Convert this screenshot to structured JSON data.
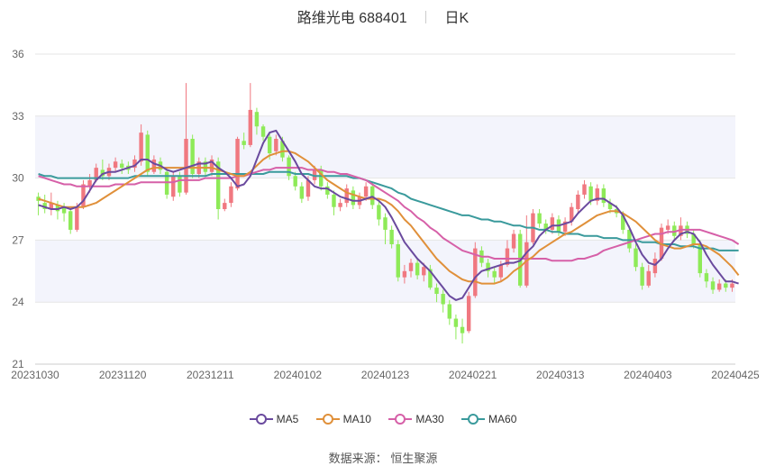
{
  "header": {
    "title": "路维光电 688401",
    "period": "日K"
  },
  "source": {
    "label": "数据来源：",
    "value": "恒生聚源"
  },
  "colors": {
    "up": "#f07880",
    "down": "#8eea58",
    "MA5": "#6a4a9e",
    "MA10": "#e0903a",
    "MA30": "#d660a8",
    "MA60": "#3a9a9c",
    "band": "#f3f4fc",
    "grid": "#e6e6e6"
  },
  "chart_data": {
    "type": "candlestick",
    "title": "路维光电 688401",
    "ylim": [
      21,
      36
    ],
    "yticks": [
      21,
      24,
      27,
      30,
      33,
      36
    ],
    "xticks": [
      "20231030",
      "20231120",
      "20231211",
      "20240102",
      "20240123",
      "20240221",
      "20240313",
      "20240403",
      "20240425"
    ],
    "legend": [
      "MA5",
      "MA10",
      "MA30",
      "MA60"
    ],
    "legend_position": "bottom",
    "candles": [
      [
        29.1,
        28.9,
        29.3,
        28.2
      ],
      [
        28.8,
        28.5,
        29.2,
        28.3
      ],
      [
        28.5,
        28.8,
        29.3,
        28.2
      ],
      [
        28.7,
        28.4,
        28.9,
        28.0
      ],
      [
        28.6,
        28.3,
        28.8,
        27.9
      ],
      [
        28.4,
        27.5,
        28.5,
        27.3
      ],
      [
        27.5,
        28.6,
        28.8,
        27.4
      ],
      [
        28.6,
        29.7,
        29.9,
        28.5
      ],
      [
        29.6,
        29.9,
        30.2,
        29.3
      ],
      [
        29.9,
        30.5,
        30.7,
        29.8
      ],
      [
        30.4,
        30.1,
        30.9,
        29.9
      ],
      [
        30.1,
        30.5,
        30.7,
        29.9
      ],
      [
        30.5,
        30.8,
        31.0,
        30.3
      ],
      [
        30.7,
        30.5,
        30.9,
        30.2
      ],
      [
        30.6,
        30.4,
        30.8,
        30.2
      ],
      [
        30.5,
        30.9,
        31.1,
        30.3
      ],
      [
        30.8,
        32.2,
        32.6,
        30.6
      ],
      [
        32.1,
        30.3,
        32.3,
        30.1
      ],
      [
        30.3,
        30.9,
        31.1,
        30.2
      ],
      [
        30.8,
        30.4,
        31.0,
        30.2
      ],
      [
        30.3,
        29.2,
        30.4,
        29.0
      ],
      [
        29.1,
        30.1,
        30.3,
        28.9
      ],
      [
        30.1,
        29.3,
        30.3,
        29.1
      ],
      [
        29.3,
        31.9,
        34.6,
        29.2
      ],
      [
        31.9,
        30.2,
        32.1,
        30.0
      ],
      [
        30.2,
        30.8,
        31.0,
        30.0
      ],
      [
        30.8,
        30.3,
        31.0,
        30.1
      ],
      [
        30.3,
        30.9,
        31.1,
        30.1
      ],
      [
        30.8,
        28.5,
        31.0,
        28.0
      ],
      [
        28.5,
        28.8,
        29.0,
        28.4
      ],
      [
        28.8,
        29.6,
        29.8,
        28.6
      ],
      [
        29.5,
        31.9,
        32.0,
        29.4
      ],
      [
        31.8,
        31.6,
        32.2,
        31.4
      ],
      [
        31.6,
        33.3,
        34.6,
        31.5
      ],
      [
        33.2,
        32.5,
        33.4,
        32.1
      ],
      [
        32.5,
        32.0,
        32.6,
        31.8
      ],
      [
        32.0,
        31.2,
        32.2,
        30.9
      ],
      [
        31.3,
        31.9,
        32.1,
        31.1
      ],
      [
        31.8,
        31.0,
        32.0,
        30.8
      ],
      [
        31.0,
        30.1,
        31.1,
        29.9
      ],
      [
        30.1,
        29.6,
        30.3,
        29.4
      ],
      [
        29.6,
        29.0,
        29.8,
        28.8
      ],
      [
        29.1,
        29.9,
        30.1,
        28.9
      ],
      [
        29.9,
        30.4,
        30.6,
        29.7
      ],
      [
        30.4,
        29.6,
        30.6,
        29.4
      ],
      [
        29.6,
        29.2,
        29.8,
        29.0
      ],
      [
        29.2,
        28.6,
        29.4,
        28.2
      ],
      [
        28.6,
        28.8,
        29.0,
        28.4
      ],
      [
        28.8,
        29.5,
        29.7,
        28.6
      ],
      [
        29.4,
        28.7,
        29.6,
        28.5
      ],
      [
        28.7,
        29.1,
        29.3,
        28.5
      ],
      [
        29.1,
        29.6,
        29.8,
        28.9
      ],
      [
        29.6,
        28.7,
        29.8,
        28.5
      ],
      [
        28.7,
        28.0,
        28.9,
        27.7
      ],
      [
        28.1,
        27.5,
        28.3,
        26.8
      ],
      [
        27.5,
        26.8,
        27.7,
        26.6
      ],
      [
        26.8,
        25.2,
        27.0,
        25.0
      ],
      [
        25.2,
        25.5,
        25.8,
        24.9
      ],
      [
        25.5,
        25.9,
        26.1,
        25.2
      ],
      [
        25.9,
        25.3,
        26.1,
        25.1
      ],
      [
        25.3,
        25.7,
        25.9,
        25.0
      ],
      [
        25.6,
        24.7,
        25.8,
        24.6
      ],
      [
        24.7,
        24.4,
        24.9,
        24.0
      ],
      [
        24.4,
        23.9,
        24.6,
        23.5
      ],
      [
        23.9,
        23.2,
        24.1,
        22.9
      ],
      [
        23.2,
        22.8,
        23.4,
        22.2
      ],
      [
        22.8,
        22.5,
        23.2,
        22.0
      ],
      [
        22.6,
        24.3,
        24.5,
        22.5
      ],
      [
        24.3,
        26.6,
        26.9,
        24.2
      ],
      [
        26.5,
        25.9,
        26.7,
        25.7
      ],
      [
        25.9,
        25.5,
        26.1,
        25.2
      ],
      [
        25.5,
        25.2,
        25.7,
        24.9
      ],
      [
        25.2,
        25.8,
        26.0,
        25.0
      ],
      [
        25.8,
        26.6,
        27.0,
        25.7
      ],
      [
        26.6,
        27.3,
        27.5,
        26.4
      ],
      [
        27.3,
        24.8,
        27.5,
        24.7
      ],
      [
        24.8,
        26.9,
        28.2,
        24.7
      ],
      [
        26.9,
        28.3,
        28.5,
        26.8
      ],
      [
        28.3,
        27.8,
        28.5,
        27.6
      ],
      [
        27.8,
        27.5,
        28.0,
        27.3
      ],
      [
        27.5,
        28.1,
        28.3,
        27.3
      ],
      [
        28.0,
        27.4,
        28.2,
        27.2
      ],
      [
        27.4,
        27.9,
        28.1,
        27.2
      ],
      [
        27.9,
        28.6,
        28.8,
        27.7
      ],
      [
        28.5,
        29.2,
        29.4,
        28.3
      ],
      [
        29.2,
        29.7,
        29.9,
        29.0
      ],
      [
        29.6,
        28.9,
        29.8,
        28.7
      ],
      [
        28.9,
        29.5,
        29.7,
        28.7
      ],
      [
        29.5,
        28.8,
        29.7,
        28.6
      ],
      [
        28.8,
        28.5,
        29.0,
        28.3
      ],
      [
        28.5,
        28.3,
        28.7,
        28.1
      ],
      [
        28.2,
        27.5,
        28.4,
        27.3
      ],
      [
        27.5,
        26.6,
        27.7,
        26.4
      ],
      [
        26.6,
        25.7,
        26.8,
        25.5
      ],
      [
        25.7,
        24.8,
        25.9,
        24.6
      ],
      [
        24.8,
        25.5,
        25.8,
        24.7
      ],
      [
        25.4,
        26.1,
        26.4,
        25.2
      ],
      [
        26.1,
        27.6,
        27.8,
        26.0
      ],
      [
        27.5,
        27.7,
        28.0,
        27.3
      ],
      [
        27.7,
        27.2,
        27.9,
        27.0
      ],
      [
        27.2,
        27.7,
        28.1,
        27.0
      ],
      [
        27.7,
        27.3,
        27.9,
        27.1
      ],
      [
        27.3,
        26.8,
        27.5,
        26.6
      ],
      [
        26.8,
        25.4,
        27.0,
        25.2
      ],
      [
        25.4,
        25.0,
        25.6,
        24.7
      ],
      [
        25.0,
        24.6,
        25.2,
        24.4
      ],
      [
        24.6,
        24.9,
        25.1,
        24.5
      ],
      [
        24.9,
        24.7,
        25.1,
        24.5
      ],
      [
        24.7,
        24.9,
        25.1,
        24.5
      ]
    ],
    "ma": {
      "MA5": [
        28.7,
        28.6,
        28.5,
        28.5,
        28.6,
        28.5,
        28.6,
        28.9,
        29.4,
        29.9,
        30.2,
        30.3,
        30.3,
        30.4,
        30.5,
        30.6,
        30.9,
        30.9,
        30.7,
        30.6,
        30.4,
        30.3,
        30.4,
        30.5,
        30.6,
        30.7,
        30.7,
        30.8,
        30.5,
        30.3,
        30.0,
        29.6,
        29.7,
        30.1,
        30.9,
        31.7,
        32.2,
        32.3,
        31.8,
        31.3,
        30.8,
        30.2,
        29.9,
        29.6,
        29.5,
        29.5,
        29.3,
        29.1,
        29.0,
        28.9,
        28.9,
        29.0,
        29.1,
        28.9,
        28.6,
        28.1,
        27.5,
        26.9,
        26.5,
        26.1,
        25.8,
        25.5,
        25.1,
        24.7,
        24.3,
        24.1,
        24.2,
        24.7,
        25.2,
        25.5,
        25.6,
        25.7,
        25.8,
        25.9,
        25.9,
        26.0,
        26.4,
        26.7,
        27.2,
        27.5,
        27.7,
        27.7,
        27.8,
        27.9,
        28.3,
        28.6,
        28.9,
        29.0,
        29.0,
        28.8,
        28.6,
        28.2,
        27.6,
        26.9,
        26.3,
        25.9,
        25.8,
        26.1,
        26.6,
        27.0,
        27.3,
        27.4,
        27.3,
        26.9,
        26.3,
        25.8,
        25.4,
        25.0,
        25.0,
        24.9
      ],
      "MA10": [
        29.0,
        28.9,
        28.8,
        28.7,
        28.6,
        28.6,
        28.6,
        28.6,
        28.7,
        28.8,
        29.0,
        29.2,
        29.4,
        29.6,
        29.8,
        30.0,
        30.2,
        30.4,
        30.5,
        30.5,
        30.5,
        30.5,
        30.5,
        30.5,
        30.5,
        30.5,
        30.5,
        30.5,
        30.4,
        30.3,
        30.2,
        30.1,
        30.1,
        30.3,
        30.6,
        30.9,
        31.1,
        31.2,
        31.3,
        31.3,
        31.2,
        31.0,
        30.8,
        30.5,
        30.2,
        29.9,
        29.7,
        29.5,
        29.3,
        29.2,
        29.1,
        29.0,
        29.0,
        29.0,
        28.9,
        28.7,
        28.4,
        28.0,
        27.7,
        27.3,
        26.9,
        26.5,
        26.1,
        25.8,
        25.5,
        25.3,
        25.1,
        25.0,
        25.0,
        24.9,
        24.9,
        24.9,
        25.0,
        25.2,
        25.5,
        25.7,
        26.0,
        26.2,
        26.5,
        26.7,
        26.9,
        27.1,
        27.3,
        27.4,
        27.6,
        27.8,
        28.0,
        28.2,
        28.3,
        28.4,
        28.4,
        28.3,
        28.1,
        27.9,
        27.6,
        27.3,
        27.0,
        26.8,
        26.7,
        26.6,
        26.6,
        26.7,
        26.8,
        26.8,
        26.7,
        26.5,
        26.3,
        26.0,
        25.7,
        25.3
      ],
      "MA30": [
        30.1,
        30.0,
        29.9,
        29.8,
        29.7,
        29.7,
        29.6,
        29.6,
        29.6,
        29.6,
        29.6,
        29.6,
        29.7,
        29.7,
        29.7,
        29.7,
        29.8,
        29.8,
        29.8,
        29.8,
        29.8,
        29.8,
        29.9,
        29.9,
        29.9,
        29.9,
        30.0,
        30.0,
        30.0,
        30.0,
        30.0,
        30.1,
        30.1,
        30.2,
        30.3,
        30.4,
        30.4,
        30.5,
        30.5,
        30.5,
        30.5,
        30.5,
        30.4,
        30.4,
        30.4,
        30.3,
        30.3,
        30.2,
        30.2,
        30.1,
        30.0,
        29.9,
        29.7,
        29.5,
        29.3,
        29.1,
        28.9,
        28.6,
        28.4,
        28.1,
        27.9,
        27.6,
        27.4,
        27.1,
        26.9,
        26.7,
        26.5,
        26.4,
        26.3,
        26.2,
        26.2,
        26.1,
        26.1,
        26.1,
        26.1,
        26.1,
        26.1,
        26.1,
        26.1,
        26.1,
        26.0,
        26.0,
        26.0,
        26.0,
        26.1,
        26.1,
        26.2,
        26.3,
        26.5,
        26.6,
        26.7,
        26.8,
        26.9,
        27.0,
        27.1,
        27.2,
        27.3,
        27.3,
        27.4,
        27.4,
        27.5,
        27.5,
        27.5,
        27.5,
        27.4,
        27.3,
        27.2,
        27.1,
        27.0,
        26.8
      ],
      "MA60": [
        30.2,
        30.1,
        30.1,
        30.0,
        30.0,
        30.0,
        30.0,
        30.0,
        30.0,
        30.0,
        30.0,
        30.0,
        30.0,
        30.0,
        30.0,
        30.1,
        30.1,
        30.1,
        30.1,
        30.1,
        30.1,
        30.1,
        30.1,
        30.1,
        30.1,
        30.1,
        30.1,
        30.2,
        30.2,
        30.2,
        30.2,
        30.2,
        30.2,
        30.2,
        30.2,
        30.2,
        30.3,
        30.3,
        30.3,
        30.3,
        30.2,
        30.2,
        30.2,
        30.1,
        30.1,
        30.1,
        30.1,
        30.1,
        30.1,
        30.0,
        30.0,
        29.9,
        29.8,
        29.7,
        29.6,
        29.5,
        29.3,
        29.2,
        29.0,
        28.9,
        28.8,
        28.7,
        28.6,
        28.5,
        28.4,
        28.3,
        28.2,
        28.2,
        28.1,
        28.0,
        28.0,
        27.9,
        27.9,
        27.8,
        27.7,
        27.7,
        27.6,
        27.6,
        27.5,
        27.5,
        27.4,
        27.4,
        27.3,
        27.3,
        27.3,
        27.2,
        27.2,
        27.2,
        27.1,
        27.1,
        27.1,
        27.0,
        27.0,
        27.0,
        26.9,
        26.9,
        26.9,
        26.8,
        26.8,
        26.8,
        26.7,
        26.7,
        26.7,
        26.6,
        26.6,
        26.6,
        26.5,
        26.5,
        26.5,
        26.5
      ]
    }
  }
}
